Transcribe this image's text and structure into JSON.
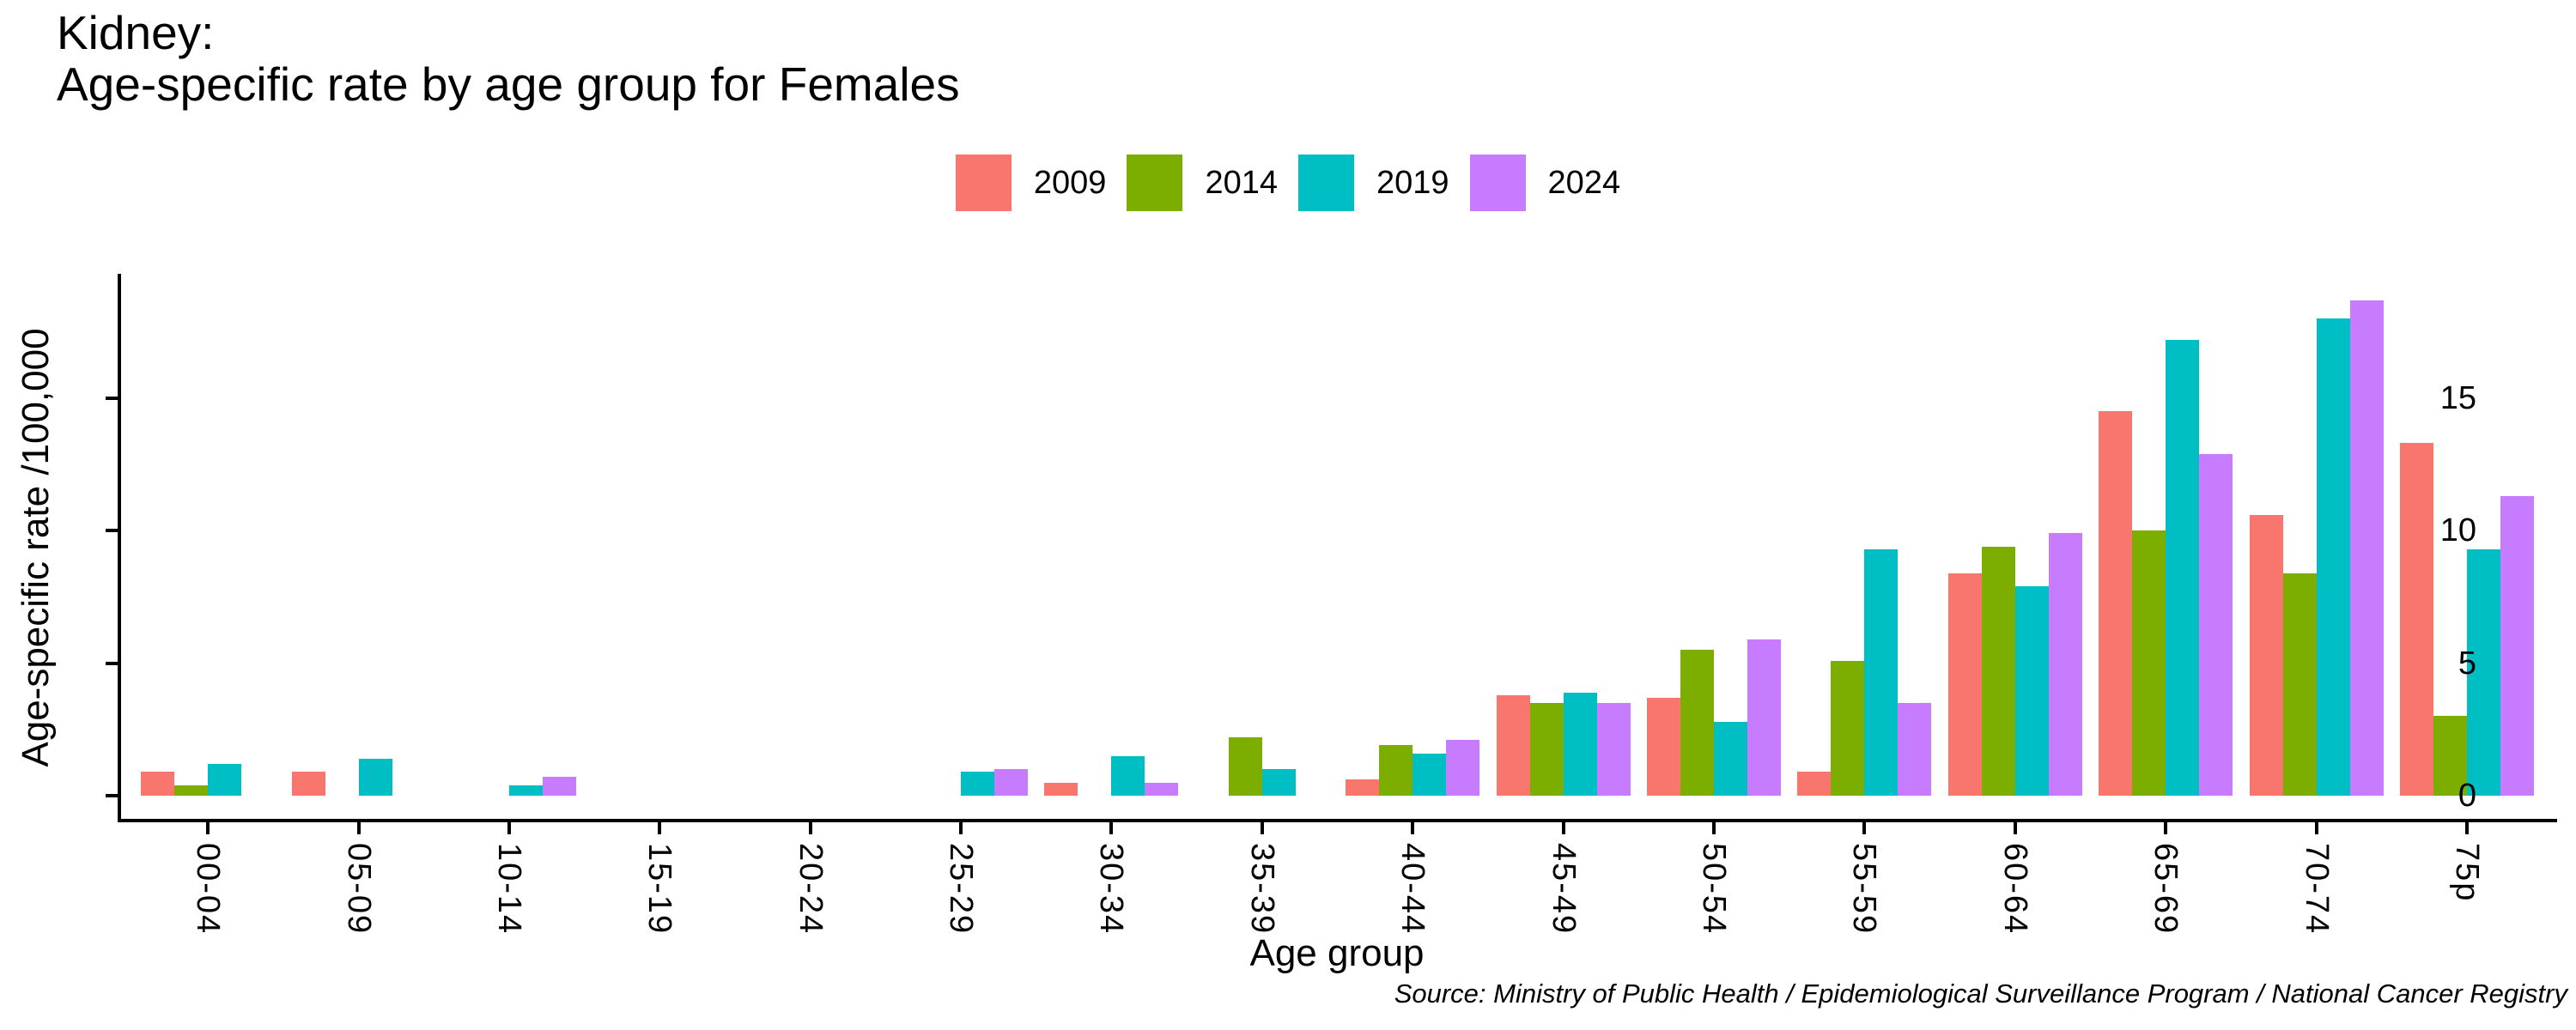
{
  "title": {
    "line1": "Kidney:",
    "line2": "Age-specific rate by age group for Females"
  },
  "axes": {
    "xlabel": "Age group",
    "ylabel": "Age-specific rate /100,000"
  },
  "source": {
    "text": "Source: Ministry of Public Health / Epidemiological Surveillance Program / National Cancer Registry"
  },
  "chart_data": {
    "type": "bar",
    "title": "Kidney: Age-specific rate by age group for Females",
    "xlabel": "Age group",
    "ylabel": "Age-specific rate /100,000",
    "categories": [
      "00-04",
      "05-09",
      "10-14",
      "15-19",
      "20-24",
      "25-29",
      "30-34",
      "35-39",
      "40-44",
      "45-49",
      "50-54",
      "55-59",
      "60-64",
      "65-69",
      "70-74",
      "75p"
    ],
    "series": [
      {
        "name": "2009",
        "color": "#F8766D",
        "values": [
          0.9,
          0.9,
          0,
          0,
          0,
          0,
          0.5,
          0,
          0.6,
          3.8,
          3.7,
          0.9,
          8.4,
          14.5,
          10.6,
          13.3
        ]
      },
      {
        "name": "2014",
        "color": "#7CAE00",
        "values": [
          0.4,
          0,
          0,
          0,
          0,
          0,
          0,
          2.2,
          1.9,
          3.5,
          5.5,
          5.1,
          9.4,
          10.0,
          8.4,
          3.0
        ]
      },
      {
        "name": "2019",
        "color": "#00BFC4",
        "values": [
          1.2,
          1.4,
          0.4,
          0,
          0,
          0.9,
          1.5,
          1.0,
          1.6,
          3.9,
          2.8,
          9.3,
          7.9,
          17.2,
          18.0,
          9.3
        ]
      },
      {
        "name": "2024",
        "color": "#C77CFF",
        "values": [
          0,
          0,
          0.7,
          0,
          0,
          1.0,
          0.5,
          0,
          2.1,
          3.5,
          5.9,
          3.5,
          9.9,
          12.9,
          18.7,
          11.3
        ]
      }
    ],
    "yticks": [
      0,
      5,
      10,
      15
    ],
    "ylim": [
      0,
      19.6
    ],
    "grid": false,
    "legend_position": "top",
    "axis_color": "#000000",
    "background": "#ffffff"
  }
}
